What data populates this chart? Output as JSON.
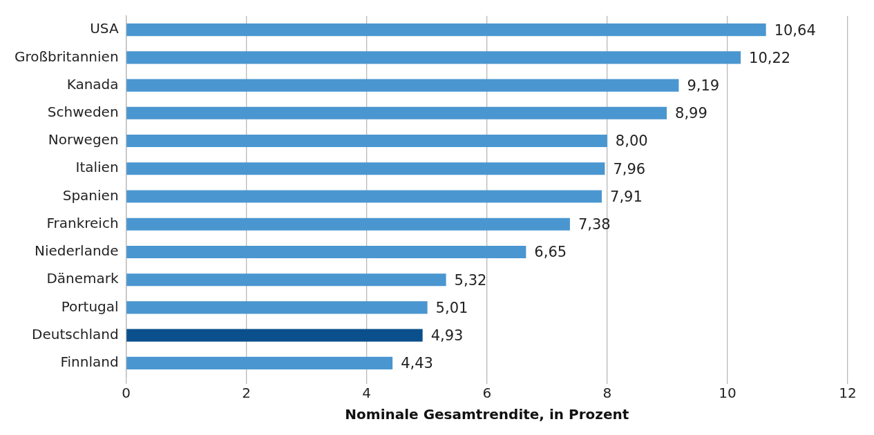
{
  "chart_data": {
    "type": "bar",
    "orientation": "horizontal",
    "xlabel": "Nominale Gesamtrendite, in Prozent",
    "categories": [
      "USA",
      "Großbritannien",
      "Kanada",
      "Schweden",
      "Norwegen",
      "Italien",
      "Spanien",
      "Frankreich",
      "Niederlande",
      "Dänemark",
      "Portugal",
      "Deutschland",
      "Finnland"
    ],
    "values": [
      10.64,
      10.22,
      9.19,
      8.99,
      8.0,
      7.96,
      7.91,
      7.38,
      6.65,
      5.32,
      5.01,
      4.93,
      4.43
    ],
    "colors": [
      "#4a96d0",
      "#4a96d0",
      "#4a96d0",
      "#4a96d0",
      "#4a96d0",
      "#4a96d0",
      "#4a96d0",
      "#4a96d0",
      "#4a96d0",
      "#4a96d0",
      "#4a96d0",
      "#0b4f8c",
      "#4a96d0"
    ],
    "value_labels": [
      "10,64",
      "10,22",
      "9,19",
      "8,99",
      "8,00",
      "7,96",
      "7,91",
      "7,38",
      "6,65",
      "5,32",
      "5,01",
      "4,93",
      "4,43"
    ],
    "xlim": [
      0,
      12
    ],
    "xticks": [
      0,
      2,
      4,
      6,
      8,
      10,
      12
    ],
    "grid": "x",
    "legend": false
  }
}
